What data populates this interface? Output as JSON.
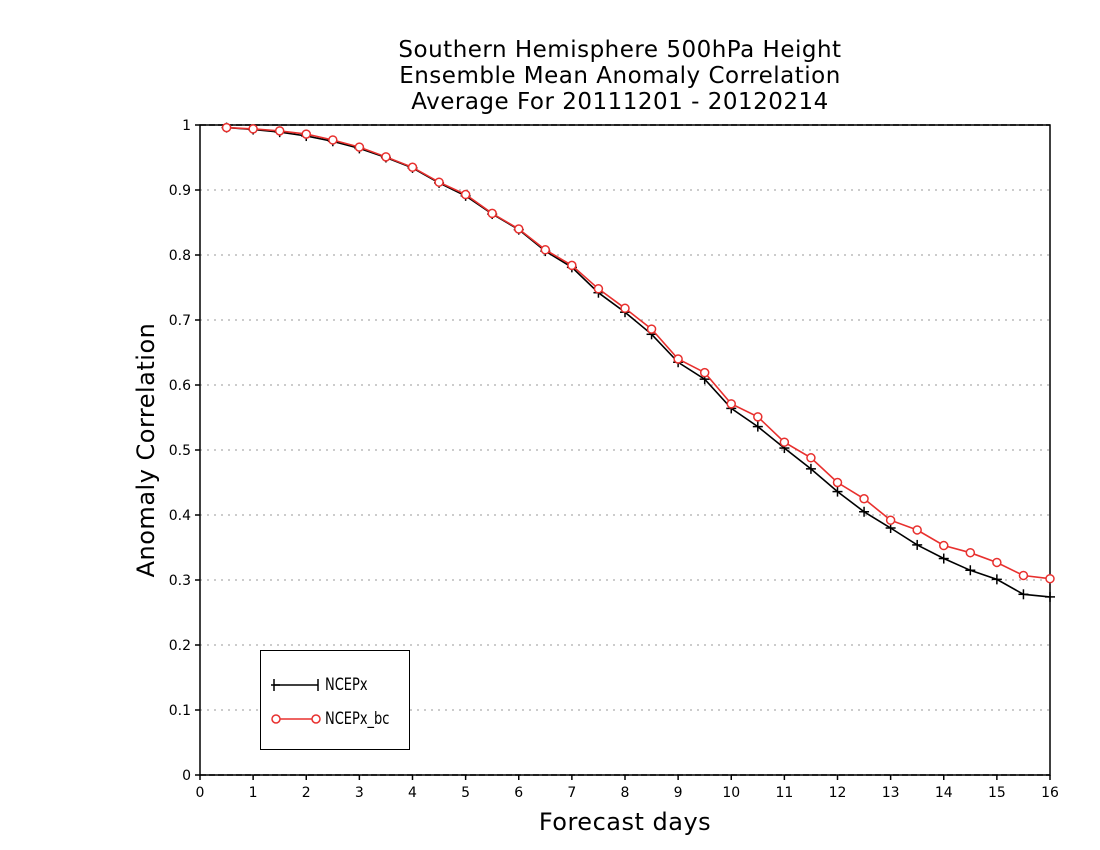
{
  "chart_data": {
    "type": "line",
    "title": [
      "Southern Hemisphere 500hPa Height",
      "Ensemble Mean Anomaly Correlation",
      "Average For 20111201 - 20120214"
    ],
    "xlabel": "Forecast days",
    "ylabel": "Anomaly Correlation",
    "xlim": [
      0,
      16
    ],
    "ylim": [
      0,
      1
    ],
    "x_ticks": [
      "0",
      "1",
      "2",
      "3",
      "4",
      "5",
      "6",
      "7",
      "8",
      "9",
      "10",
      "11",
      "12",
      "13",
      "14",
      "15",
      "16"
    ],
    "y_ticks": [
      "0",
      "0.1",
      "0.2",
      "0.3",
      "0.4",
      "0.5",
      "0.6",
      "0.7",
      "0.8",
      "0.9",
      "1"
    ],
    "grid": "horizontal dotted",
    "legend_position": "bottom-left",
    "x": [
      0.5,
      1,
      1.5,
      2,
      2.5,
      3,
      3.5,
      4,
      4.5,
      5,
      5.5,
      6,
      6.5,
      7,
      7.5,
      8,
      8.5,
      9,
      9.5,
      10,
      10.5,
      11,
      11.5,
      12,
      12.5,
      13,
      13.5,
      14,
      14.5,
      15,
      15.5,
      16
    ],
    "series": [
      {
        "name": "NCEPx",
        "color": "#000000",
        "marker": "plus",
        "values": [
          0.996,
          0.993,
          0.989,
          0.983,
          0.975,
          0.964,
          0.95,
          0.934,
          0.911,
          0.891,
          0.863,
          0.839,
          0.806,
          0.781,
          0.742,
          0.712,
          0.678,
          0.635,
          0.609,
          0.564,
          0.536,
          0.503,
          0.471,
          0.436,
          0.405,
          0.38,
          0.354,
          0.333,
          0.315,
          0.301,
          0.278,
          0.274
        ]
      },
      {
        "name": "NCEPx_bc",
        "color": "#e8302e",
        "marker": "circle",
        "values": [
          0.996,
          0.994,
          0.991,
          0.986,
          0.977,
          0.966,
          0.951,
          0.935,
          0.912,
          0.893,
          0.864,
          0.84,
          0.808,
          0.784,
          0.748,
          0.718,
          0.686,
          0.64,
          0.619,
          0.571,
          0.551,
          0.512,
          0.488,
          0.45,
          0.425,
          0.392,
          0.377,
          0.353,
          0.342,
          0.327,
          0.307,
          0.302
        ]
      }
    ]
  }
}
